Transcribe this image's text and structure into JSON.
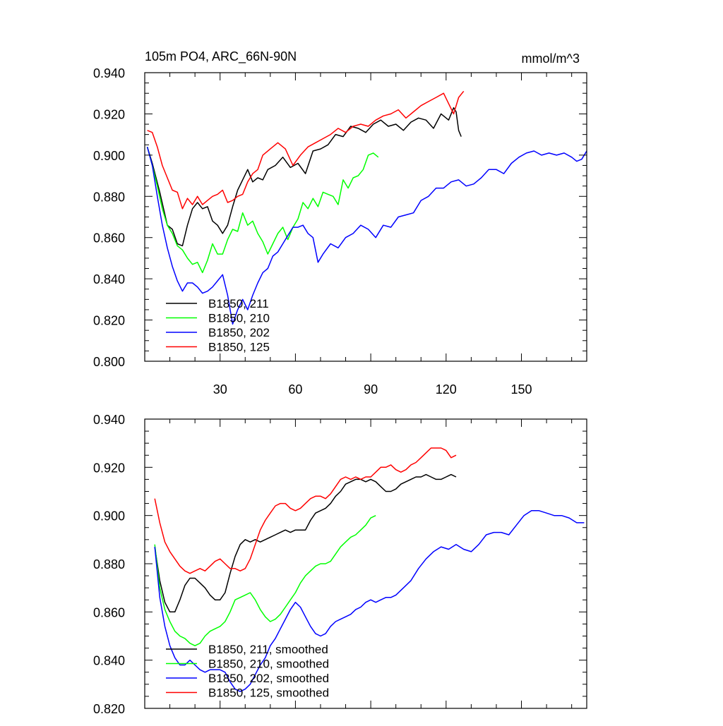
{
  "chart_data": [
    {
      "type": "line",
      "title": "105m PO4, ARC_66N-90N",
      "units": "mmol/m^3",
      "xlabel": "",
      "ylabel": "",
      "xlim": [
        0,
        176
      ],
      "ylim": [
        0.8,
        0.94
      ],
      "x_ticks": [
        30,
        60,
        90,
        120,
        150
      ],
      "x_tick_labels": [
        "30",
        "60",
        "90",
        "120",
        "150"
      ],
      "y_ticks": [
        0.8,
        0.82,
        0.84,
        0.86,
        0.88,
        0.9,
        0.92,
        0.94
      ],
      "y_tick_labels": [
        "0.800",
        "0.820",
        "0.840",
        "0.860",
        "0.880",
        "0.900",
        "0.920",
        "0.940"
      ],
      "grid": false,
      "legend": "bottom-left",
      "series": [
        {
          "name": "B1850, 211",
          "color": "#000000",
          "x": [
            1,
            3,
            6,
            9,
            11,
            13,
            15,
            17,
            19,
            21,
            23,
            25,
            27,
            29,
            31,
            33,
            35,
            37,
            39,
            41,
            43,
            45,
            47,
            49,
            52,
            55,
            58,
            61,
            64,
            67,
            70,
            73,
            76,
            79,
            82,
            85,
            88,
            91,
            94,
            97,
            100,
            103,
            106,
            109,
            112,
            115,
            118,
            121,
            123,
            124,
            125,
            126
          ],
          "values": [
            0.904,
            0.896,
            0.882,
            0.866,
            0.864,
            0.857,
            0.856,
            0.866,
            0.874,
            0.877,
            0.874,
            0.875,
            0.868,
            0.866,
            0.862,
            0.866,
            0.875,
            0.883,
            0.888,
            0.893,
            0.887,
            0.889,
            0.888,
            0.893,
            0.895,
            0.899,
            0.894,
            0.896,
            0.891,
            0.902,
            0.903,
            0.905,
            0.91,
            0.909,
            0.914,
            0.913,
            0.911,
            0.915,
            0.917,
            0.914,
            0.915,
            0.912,
            0.916,
            0.918,
            0.917,
            0.913,
            0.92,
            0.917,
            0.923,
            0.921,
            0.912,
            0.909
          ]
        },
        {
          "name": "B1850, 210",
          "color": "#00ff00",
          "x": [
            1,
            3,
            5,
            7,
            9,
            11,
            13,
            15,
            17,
            19,
            21,
            23,
            25,
            27,
            29,
            31,
            33,
            35,
            37,
            39,
            41,
            43,
            45,
            47,
            49,
            51,
            53,
            55,
            57,
            59,
            61,
            63,
            65,
            67,
            69,
            71,
            73,
            75,
            77,
            79,
            81,
            83,
            85,
            87,
            89,
            91,
            93
          ],
          "values": [
            0.904,
            0.895,
            0.885,
            0.874,
            0.866,
            0.862,
            0.856,
            0.854,
            0.85,
            0.847,
            0.848,
            0.843,
            0.849,
            0.857,
            0.852,
            0.852,
            0.859,
            0.864,
            0.863,
            0.872,
            0.866,
            0.868,
            0.862,
            0.858,
            0.852,
            0.857,
            0.862,
            0.865,
            0.859,
            0.865,
            0.869,
            0.877,
            0.874,
            0.879,
            0.875,
            0.882,
            0.881,
            0.88,
            0.876,
            0.888,
            0.884,
            0.889,
            0.89,
            0.893,
            0.9,
            0.901,
            0.899
          ]
        },
        {
          "name": "B1850, 202",
          "color": "#0000ff",
          "x": [
            1,
            3,
            5,
            7,
            9,
            11,
            13,
            15,
            17,
            19,
            21,
            23,
            25,
            27,
            29,
            31,
            33,
            35,
            37,
            39,
            41,
            43,
            45,
            47,
            49,
            51,
            53,
            55,
            57,
            59,
            61,
            63,
            65,
            67,
            69,
            71,
            74,
            77,
            80,
            83,
            86,
            89,
            92,
            95,
            98,
            101,
            104,
            107,
            110,
            113,
            116,
            119,
            122,
            125,
            128,
            131,
            134,
            137,
            140,
            143,
            146,
            149,
            152,
            155,
            158,
            161,
            164,
            167,
            170,
            172,
            174,
            176
          ],
          "values": [
            0.904,
            0.895,
            0.88,
            0.866,
            0.855,
            0.846,
            0.839,
            0.834,
            0.838,
            0.838,
            0.836,
            0.833,
            0.834,
            0.836,
            0.839,
            0.842,
            0.832,
            0.818,
            0.825,
            0.83,
            0.825,
            0.832,
            0.838,
            0.843,
            0.845,
            0.851,
            0.853,
            0.857,
            0.861,
            0.865,
            0.865,
            0.866,
            0.862,
            0.86,
            0.848,
            0.852,
            0.857,
            0.855,
            0.86,
            0.862,
            0.866,
            0.864,
            0.86,
            0.866,
            0.865,
            0.87,
            0.871,
            0.872,
            0.878,
            0.88,
            0.884,
            0.884,
            0.887,
            0.888,
            0.885,
            0.886,
            0.889,
            0.893,
            0.893,
            0.891,
            0.896,
            0.899,
            0.901,
            0.902,
            0.9,
            0.901,
            0.9,
            0.901,
            0.899,
            0.897,
            0.898,
            0.902
          ]
        },
        {
          "name": "B1850, 125",
          "color": "#ff0000",
          "x": [
            1,
            3,
            5,
            7,
            9,
            11,
            13,
            15,
            17,
            19,
            21,
            23,
            25,
            27,
            29,
            31,
            33,
            35,
            37,
            39,
            41,
            43,
            45,
            47,
            50,
            53,
            56,
            59,
            62,
            65,
            68,
            71,
            74,
            77,
            80,
            83,
            86,
            89,
            92,
            95,
            98,
            101,
            104,
            107,
            110,
            113,
            116,
            119,
            121,
            123,
            125,
            127
          ],
          "values": [
            0.912,
            0.911,
            0.904,
            0.895,
            0.889,
            0.883,
            0.882,
            0.874,
            0.879,
            0.876,
            0.88,
            0.876,
            0.878,
            0.88,
            0.881,
            0.883,
            0.877,
            0.878,
            0.88,
            0.881,
            0.887,
            0.891,
            0.893,
            0.9,
            0.903,
            0.906,
            0.903,
            0.895,
            0.9,
            0.904,
            0.906,
            0.908,
            0.91,
            0.913,
            0.911,
            0.914,
            0.915,
            0.914,
            0.917,
            0.919,
            0.92,
            0.922,
            0.918,
            0.921,
            0.924,
            0.926,
            0.928,
            0.93,
            0.925,
            0.92,
            0.928,
            0.931
          ]
        }
      ]
    },
    {
      "type": "line",
      "title": "",
      "xlabel": "",
      "ylabel": "",
      "xlim": [
        0,
        176
      ],
      "ylim": [
        0.82,
        0.94
      ],
      "x_ticks": [
        30,
        60,
        90,
        120,
        150
      ],
      "x_tick_labels": [],
      "y_ticks": [
        0.82,
        0.84,
        0.86,
        0.88,
        0.9,
        0.92,
        0.94
      ],
      "y_tick_labels": [
        "0.820",
        "0.840",
        "0.860",
        "0.880",
        "0.900",
        "0.920",
        "0.940"
      ],
      "grid": false,
      "legend": "bottom-left",
      "series": [
        {
          "name": "B1850, 211, smoothed",
          "color": "#000000",
          "x": [
            4,
            6,
            8,
            10,
            12,
            14,
            16,
            18,
            20,
            22,
            24,
            26,
            28,
            30,
            32,
            34,
            36,
            38,
            40,
            42,
            44,
            46,
            48,
            50,
            52,
            54,
            56,
            58,
            60,
            62,
            64,
            66,
            68,
            70,
            72,
            74,
            76,
            78,
            80,
            82,
            84,
            86,
            88,
            90,
            92,
            94,
            96,
            98,
            100,
            102,
            104,
            106,
            108,
            110,
            112,
            114,
            116,
            118,
            120,
            122,
            124
          ],
          "values": [
            0.887,
            0.873,
            0.864,
            0.86,
            0.86,
            0.865,
            0.871,
            0.874,
            0.874,
            0.872,
            0.87,
            0.867,
            0.865,
            0.865,
            0.868,
            0.876,
            0.883,
            0.888,
            0.89,
            0.889,
            0.89,
            0.889,
            0.89,
            0.891,
            0.892,
            0.893,
            0.894,
            0.893,
            0.894,
            0.894,
            0.894,
            0.898,
            0.901,
            0.902,
            0.903,
            0.905,
            0.908,
            0.91,
            0.913,
            0.914,
            0.915,
            0.915,
            0.914,
            0.915,
            0.914,
            0.912,
            0.91,
            0.91,
            0.911,
            0.913,
            0.914,
            0.915,
            0.916,
            0.916,
            0.917,
            0.916,
            0.915,
            0.915,
            0.916,
            0.917,
            0.916
          ]
        },
        {
          "name": "B1850, 210, smoothed",
          "color": "#00ff00",
          "x": [
            4,
            6,
            8,
            10,
            12,
            14,
            16,
            18,
            20,
            22,
            24,
            26,
            28,
            30,
            32,
            34,
            36,
            38,
            40,
            42,
            44,
            46,
            48,
            50,
            52,
            54,
            56,
            58,
            60,
            62,
            64,
            66,
            68,
            70,
            72,
            74,
            76,
            78,
            80,
            82,
            84,
            86,
            88,
            90,
            92
          ],
          "values": [
            0.888,
            0.87,
            0.861,
            0.856,
            0.852,
            0.85,
            0.849,
            0.847,
            0.846,
            0.847,
            0.85,
            0.852,
            0.853,
            0.854,
            0.856,
            0.86,
            0.865,
            0.866,
            0.867,
            0.868,
            0.865,
            0.861,
            0.858,
            0.856,
            0.857,
            0.859,
            0.862,
            0.865,
            0.868,
            0.872,
            0.875,
            0.877,
            0.879,
            0.88,
            0.88,
            0.881,
            0.884,
            0.887,
            0.889,
            0.891,
            0.892,
            0.894,
            0.896,
            0.899,
            0.9
          ]
        },
        {
          "name": "B1850, 202, smoothed",
          "color": "#0000ff",
          "x": [
            4,
            6,
            8,
            10,
            12,
            14,
            16,
            18,
            20,
            22,
            24,
            26,
            28,
            30,
            32,
            34,
            36,
            38,
            40,
            42,
            44,
            46,
            48,
            50,
            52,
            54,
            56,
            58,
            60,
            62,
            64,
            66,
            68,
            70,
            72,
            74,
            76,
            78,
            80,
            82,
            84,
            86,
            88,
            90,
            92,
            94,
            96,
            98,
            100,
            103,
            106,
            109,
            112,
            115,
            118,
            121,
            124,
            127,
            130,
            133,
            136,
            139,
            142,
            145,
            148,
            151,
            154,
            157,
            160,
            163,
            166,
            169,
            172,
            175
          ],
          "values": [
            0.887,
            0.866,
            0.854,
            0.846,
            0.841,
            0.838,
            0.838,
            0.84,
            0.838,
            0.836,
            0.835,
            0.836,
            0.836,
            0.836,
            0.835,
            0.831,
            0.828,
            0.827,
            0.828,
            0.83,
            0.834,
            0.838,
            0.841,
            0.846,
            0.849,
            0.853,
            0.857,
            0.861,
            0.864,
            0.862,
            0.858,
            0.854,
            0.851,
            0.85,
            0.851,
            0.854,
            0.856,
            0.857,
            0.858,
            0.859,
            0.861,
            0.862,
            0.864,
            0.865,
            0.864,
            0.865,
            0.866,
            0.866,
            0.867,
            0.87,
            0.873,
            0.878,
            0.882,
            0.885,
            0.887,
            0.886,
            0.888,
            0.886,
            0.885,
            0.888,
            0.892,
            0.893,
            0.893,
            0.892,
            0.896,
            0.9,
            0.902,
            0.902,
            0.901,
            0.9,
            0.9,
            0.899,
            0.897,
            0.897
          ]
        },
        {
          "name": "B1850, 125, smoothed",
          "color": "#ff0000",
          "x": [
            4,
            6,
            8,
            10,
            12,
            14,
            16,
            18,
            20,
            22,
            24,
            26,
            28,
            30,
            32,
            34,
            36,
            38,
            40,
            42,
            44,
            46,
            48,
            50,
            52,
            54,
            56,
            58,
            60,
            62,
            64,
            66,
            68,
            70,
            72,
            74,
            76,
            78,
            80,
            82,
            84,
            86,
            88,
            90,
            92,
            94,
            96,
            98,
            100,
            102,
            104,
            106,
            108,
            110,
            112,
            114,
            116,
            118,
            120,
            122,
            124
          ],
          "values": [
            0.907,
            0.897,
            0.889,
            0.885,
            0.882,
            0.879,
            0.877,
            0.876,
            0.877,
            0.878,
            0.877,
            0.879,
            0.881,
            0.882,
            0.88,
            0.878,
            0.878,
            0.877,
            0.878,
            0.882,
            0.888,
            0.894,
            0.898,
            0.901,
            0.904,
            0.905,
            0.905,
            0.903,
            0.902,
            0.903,
            0.905,
            0.907,
            0.908,
            0.908,
            0.907,
            0.909,
            0.912,
            0.915,
            0.916,
            0.915,
            0.916,
            0.915,
            0.916,
            0.916,
            0.918,
            0.92,
            0.92,
            0.921,
            0.919,
            0.918,
            0.919,
            0.921,
            0.922,
            0.924,
            0.926,
            0.928,
            0.928,
            0.928,
            0.927,
            0.924,
            0.925
          ]
        }
      ]
    }
  ]
}
